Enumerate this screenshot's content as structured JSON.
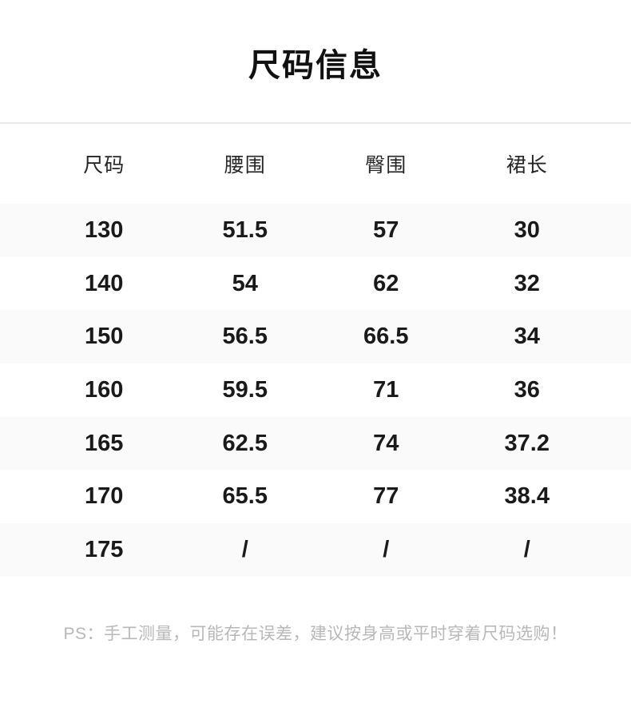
{
  "page": {
    "title": "尺码信息",
    "footer_note": "PS：手工测量，可能存在误差，建议按身高或平时穿着尺码选购！"
  },
  "size_table": {
    "columns": [
      "尺码",
      "腰围",
      "臀围",
      "裙长"
    ],
    "rows": [
      [
        "130",
        "51.5",
        "57",
        "30"
      ],
      [
        "140",
        "54",
        "62",
        "32"
      ],
      [
        "150",
        "56.5",
        "66.5",
        "34"
      ],
      [
        "160",
        "59.5",
        "71",
        "36"
      ],
      [
        "165",
        "62.5",
        "74",
        "37.2"
      ],
      [
        "170",
        "65.5",
        "77",
        "38.4"
      ],
      [
        "175",
        "/",
        "/",
        "/"
      ]
    ]
  },
  "colors": {
    "page-bg": "#ffffff",
    "stripe-bg": "#fafafa",
    "divider": "#e9e9e9",
    "title-text": "#111111",
    "header-text": "#262626",
    "data-text": "#1a1a1a",
    "note-text": "#b8b8b8"
  }
}
